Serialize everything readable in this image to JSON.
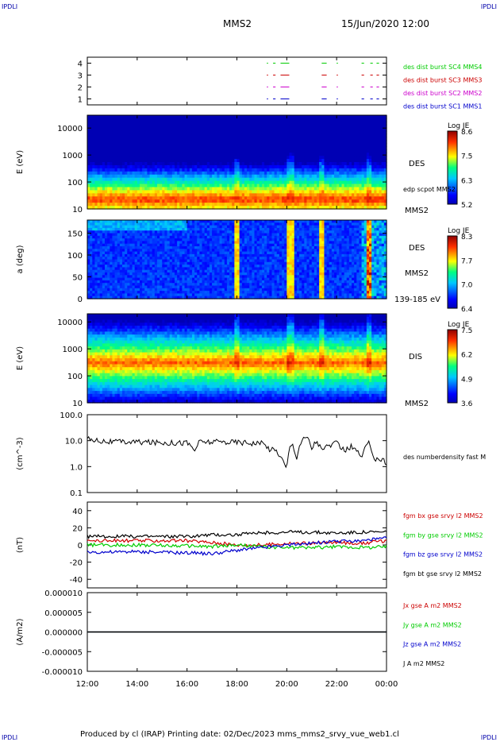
{
  "header": {
    "corner_tl": "IPDLI",
    "corner_tr": "IPDLI",
    "corner_bl": "IPDLI",
    "corner_br": "IPDLI",
    "spacecraft": "MMS2",
    "datetime": "15/Jun/2020 12:00"
  },
  "footer": {
    "text": "Produced by cl (IRAP)   Printing date: 02/Dec/2023   mms_mms2_srvy_vue_web1.cl"
  },
  "colors": {
    "blue": "#0000cc",
    "magenta": "#cc00cc",
    "red": "#cc0000",
    "green": "#00cc00",
    "black": "#000000"
  },
  "chart_data": [
    {
      "type": "line",
      "panel": "burst-availability",
      "ylim": [
        0.5,
        4.5
      ],
      "yticks": [
        "1",
        "2",
        "3",
        "4"
      ],
      "series": [
        {
          "name": "des dist burst SC1 MMS1",
          "level": 1,
          "color": "#0000cc"
        },
        {
          "name": "des dist burst SC2 MMS2",
          "level": 2,
          "color": "#cc00cc"
        },
        {
          "name": "des dist burst SC3 MMS3",
          "level": 3,
          "color": "#cc0000"
        },
        {
          "name": "des dist burst SC4 MMS4",
          "level": 4,
          "color": "#00cc00"
        }
      ],
      "intervals_hours": [
        [
          19.2,
          19.25
        ],
        [
          19.45,
          19.55
        ],
        [
          19.75,
          20.1
        ],
        [
          21.4,
          21.6
        ],
        [
          22.0,
          22.05
        ],
        [
          23.0,
          23.1
        ],
        [
          23.35,
          23.45
        ],
        [
          23.6,
          23.7
        ]
      ]
    },
    {
      "type": "heatmap",
      "panel": "des-energy",
      "ylabel": "E (eV)",
      "yscale": "log",
      "ylim": [
        10,
        30000
      ],
      "yticks": [
        "10",
        "100",
        "1000",
        "10000"
      ],
      "right_labels": [
        "DES",
        "edp scpot MMS2",
        "MMS2"
      ],
      "colorbar": {
        "title": "Log JE",
        "min": 5.2,
        "max": 8.6,
        "ticks": [
          "8.6",
          "7.5",
          "6.3",
          "5.2"
        ]
      },
      "peak_energy_ev": 30,
      "note_values": []
    },
    {
      "type": "heatmap",
      "panel": "des-pitch-angle",
      "ylabel": "a (deg)",
      "ylim": [
        0,
        180
      ],
      "yticks": [
        "0",
        "50",
        "100",
        "150"
      ],
      "right_labels": [
        "DES",
        "MMS2",
        "139-185 eV"
      ],
      "colorbar": {
        "title": "Log JE",
        "min": 6.4,
        "max": 8.3,
        "ticks": [
          "8.3",
          "7.7",
          "7.0",
          "6.4"
        ]
      }
    },
    {
      "type": "heatmap",
      "panel": "dis-energy",
      "ylabel": "E (eV)",
      "yscale": "log",
      "ylim": [
        10,
        20000
      ],
      "yticks": [
        "10",
        "100",
        "1000",
        "10000"
      ],
      "right_labels": [
        "DIS",
        "MMS2"
      ],
      "colorbar": {
        "title": "Log JE",
        "min": 3.6,
        "max": 7.5,
        "ticks": [
          "7.5",
          "6.2",
          "4.9",
          "3.6"
        ]
      },
      "peak_energy_ev": 600
    },
    {
      "type": "line",
      "panel": "density",
      "ylabel": "(cm^-3)",
      "yscale": "log",
      "ylim": [
        0.1,
        100
      ],
      "yticks": [
        "0.1",
        "1.0",
        "10.0",
        "100.0"
      ],
      "series": [
        {
          "name": "des numberdensity fast M",
          "color": "#000000",
          "x": [
            12.0,
            12.5,
            13.0,
            14.0,
            15.0,
            16.0,
            16.3,
            16.5,
            17.0,
            18.0,
            19.0,
            19.3,
            19.6,
            19.8,
            20.0,
            20.2,
            20.4,
            20.6,
            20.8,
            21.0,
            21.2,
            21.4,
            21.6,
            22.0,
            22.3,
            22.6,
            23.0,
            23.3,
            23.5,
            23.7,
            24.0
          ],
          "y": [
            12,
            10,
            9,
            9,
            8.5,
            8.5,
            4,
            9,
            9,
            9,
            8,
            5,
            4,
            2,
            0.6,
            8,
            2,
            10,
            14,
            5,
            10,
            4,
            6,
            8,
            4,
            6,
            2,
            8,
            2,
            2,
            1.5
          ]
        }
      ]
    },
    {
      "type": "line",
      "panel": "magnetic-field",
      "ylabel": "(nT)",
      "ylim": [
        -50,
        50
      ],
      "yticks": [
        "-40",
        "-20",
        "0",
        "20",
        "40"
      ],
      "series": [
        {
          "name": "fgm bx gse srvy l2 MMS2",
          "color": "#cc0000",
          "x": [
            12,
            14,
            16,
            17,
            18,
            19,
            20,
            21,
            22,
            23,
            24
          ],
          "y": [
            5,
            5,
            5,
            3,
            0,
            0,
            2,
            2,
            3,
            2,
            5
          ]
        },
        {
          "name": "fgm by gse srvy l2 MMS2",
          "color": "#00cc00",
          "x": [
            12,
            14,
            16,
            17,
            18,
            19,
            20,
            21,
            22,
            23,
            24
          ],
          "y": [
            0,
            0,
            -1,
            -2,
            0,
            -2,
            -3,
            -3,
            -2,
            -3,
            -2
          ]
        },
        {
          "name": "fgm bz gse srvy l2 MMS2",
          "color": "#0000cc",
          "x": [
            12,
            14,
            16,
            17,
            18,
            19,
            20,
            21,
            22,
            23,
            24
          ],
          "y": [
            -8,
            -8,
            -9,
            -10,
            -6,
            -3,
            0,
            2,
            4,
            5,
            8
          ]
        },
        {
          "name": "fgm bt gse srvy l2 MMS2",
          "color": "#000000",
          "x": [
            12,
            14,
            16,
            17,
            18,
            19,
            20,
            21,
            22,
            23,
            24
          ],
          "y": [
            10,
            10,
            10,
            12,
            12,
            14,
            15,
            15,
            14,
            15,
            15
          ]
        }
      ]
    },
    {
      "type": "line",
      "panel": "current-density",
      "ylabel": "(A/m2)",
      "ylim": [
        -1e-05,
        1e-05
      ],
      "yticks": [
        "-0.000010",
        "-0.000005",
        "0.000000",
        "0.000005",
        "0.000010"
      ],
      "series": [
        {
          "name": "Jx gse A m2 MMS2",
          "color": "#cc0000",
          "x": [
            12,
            24
          ],
          "y": [
            0,
            0
          ]
        },
        {
          "name": "Jy gse A m2 MMS2",
          "color": "#00cc00",
          "x": [
            12,
            24
          ],
          "y": [
            0,
            0
          ]
        },
        {
          "name": "Jz gse A m2 MMS2",
          "color": "#0000cc",
          "x": [
            12,
            24
          ],
          "y": [
            0,
            0
          ]
        },
        {
          "name": "J A m2 MMS2",
          "color": "#000000",
          "x": [
            12,
            24
          ],
          "y": [
            0,
            0
          ]
        }
      ]
    }
  ],
  "time_axis": {
    "range_hours": [
      12,
      24
    ],
    "ticks": [
      "12:00",
      "14:00",
      "16:00",
      "18:00",
      "20:00",
      "22:00",
      "00:00"
    ]
  }
}
